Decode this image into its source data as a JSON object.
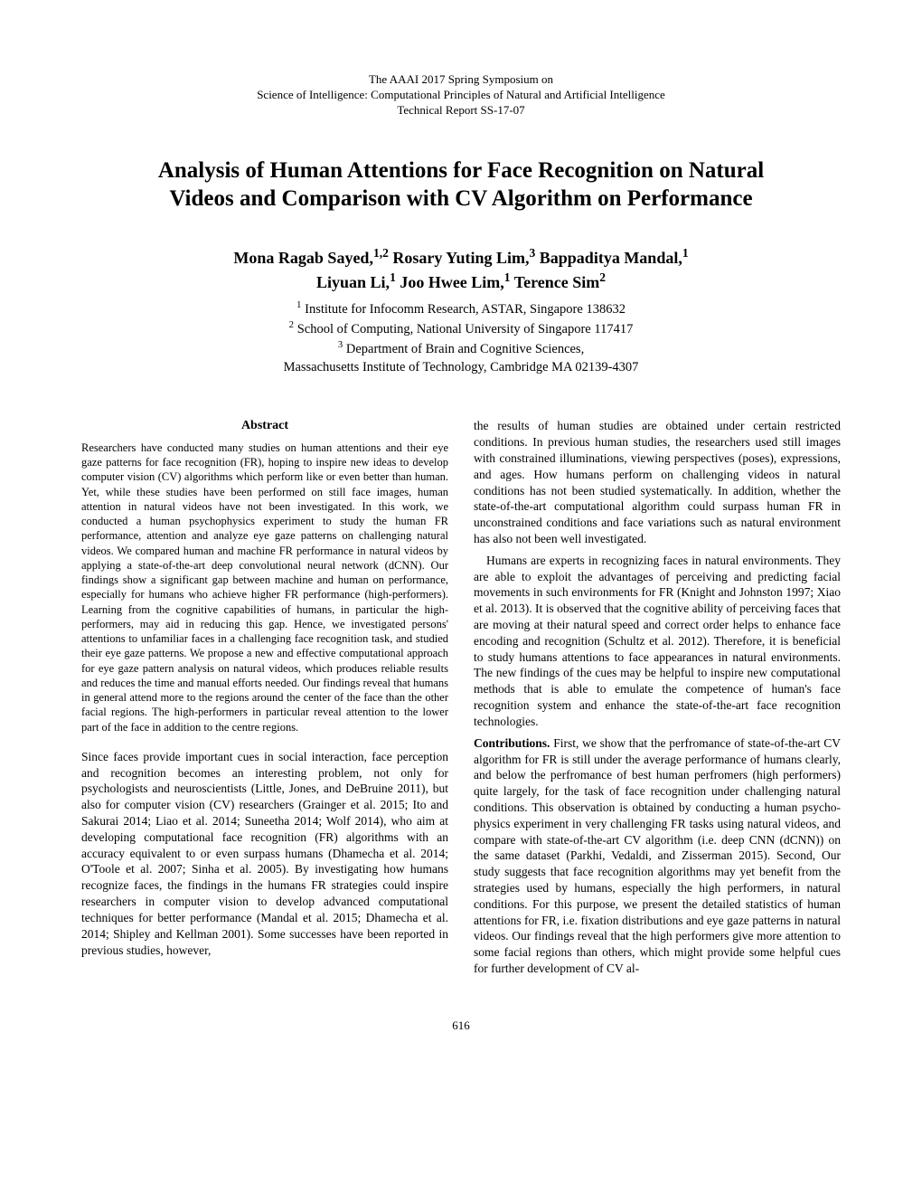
{
  "header": {
    "line1": "The AAAI 2017 Spring Symposium on",
    "line2": "Science of Intelligence: Computational Principles of Natural and Artificial Intelligence",
    "line3": "Technical Report SS-17-07"
  },
  "title": {
    "line1": "Analysis of Human Attentions for Face Recognition on Natural",
    "line2": "Videos and Comparison with CV Algorithm on Performance"
  },
  "authors": {
    "line1_html": "Mona Ragab Sayed,<sup>1,2</sup> Rosary Yuting Lim,<sup>3</sup> Bappaditya Mandal,<sup>1</sup>",
    "line2_html": "Liyuan Li,<sup>1</sup> Joo Hwee Lim,<sup>1</sup> Terence Sim<sup>2</sup>"
  },
  "affiliations": {
    "a1_html": "<sup>1</sup> Institute for Infocomm Research, ASTAR, Singapore 138632",
    "a2_html": "<sup>2</sup> School of Computing, National University of Singapore 117417",
    "a3_html": "<sup>3</sup> Department of Brain and Cognitive Sciences,",
    "a4": "Massachusetts Institute of Technology, Cambridge MA 02139-4307"
  },
  "abstract": {
    "heading": "Abstract",
    "body": "Researchers have conducted many studies on human attentions and their eye gaze patterns for face recognition (FR), hoping to inspire new ideas to develop computer vision (CV) algorithms which perform like or even better than human. Yet, while these studies have been performed on still face images, human attention in natural videos have not been investigated. In this work, we conducted a human psychophysics experiment to study the human FR performance, attention and analyze eye gaze patterns on challenging natural videos. We compared human and machine FR performance in natural videos by applying a state-of-the-art deep convolutional neural network (dCNN). Our findings show a significant gap between machine and human on performance, especially for humans who achieve higher FR performance (high-performers). Learning from the cognitive capabilities of humans, in particular the high-performers, may aid in reducing this gap. Hence, we investigated persons' attentions to unfamiliar faces in a challenging face recognition task, and studied their eye gaze patterns. We propose a new and effective computational approach for eye gaze pattern analysis on natural videos, which produces reliable results and reduces the time and manual efforts needed. Our findings reveal that humans in general attend more to the regions around the center of the face than the other facial regions. The high-performers in particular reveal attention to the lower part of the face in addition to the centre regions."
  },
  "left": {
    "p1": "Since faces provide important cues in social interaction, face perception and recognition becomes an interesting problem, not only for psychologists and neuroscientists (Little, Jones, and DeBruine 2011), but also for computer vision (CV) researchers (Grainger et al. 2015; Ito and Sakurai 2014; Liao et al. 2014; Suneetha 2014; Wolf 2014), who aim at developing computational face recognition (FR) algorithms with an accuracy equivalent to or even surpass humans (Dhamecha et al. 2014; O'Toole et al. 2007; Sinha et al. 2005). By investigating how humans recognize faces, the findings in the humans FR strategies could inspire researchers in computer vision to develop advanced computational techniques for better performance (Mandal et al. 2015; Dhamecha et al. 2014; Shipley and Kellman 2001). Some successes have been reported in previous studies, however,"
  },
  "right": {
    "p1": "the results of human studies are obtained under certain restricted conditions. In previous human studies, the researchers used still images with constrained illuminations, viewing perspectives (poses), expressions, and ages. How humans perform on challenging videos in natural conditions has not been studied systematically. In addition, whether the state-of-the-art computational algorithm could surpass human FR in unconstrained conditions and face variations such as natural environment has also not been well investigated.",
    "p2": "Humans are experts in recognizing faces in natural environments. They are able to exploit the advantages of perceiving and predicting facial movements in such environments for FR (Knight and Johnston 1997; Xiao et al. 2013). It is observed that the cognitive ability of perceiving faces that are moving at their natural speed and correct order helps to enhance face encoding and recognition (Schultz et al. 2012). Therefore, it is beneficial to study humans attentions to face appearances in natural environments. The new findings of the cues may be helpful to inspire new computational methods that is able to emulate the competence of human's face recognition system and enhance the state-of-the-art face recognition technologies.",
    "contrib_label": "Contributions.",
    "p3": " First, we show that the perfromance of state-of-the-art CV algorithm for FR is still under the average performance of humans clearly, and below the perfromance of best human perfromers (high performers) quite largely, for the task of face recognition under challenging natural conditions. This observation is obtained by conducting a human psycho-physics experiment in very challenging FR tasks using natural videos, and compare with state-of-the-art CV algorithm (i.e. deep CNN (dCNN)) on the same dataset (Parkhi, Vedaldi, and Zisserman 2015). Second, Our study suggests that face recognition algorithms may yet benefit from the strategies used by humans, especially the high performers, in natural conditions. For this purpose, we present the detailed statistics of human attentions for FR, i.e. fixation distributions and eye gaze patterns in natural videos. Our findings reveal that the high performers give more attention to some facial regions than others, which might provide some helpful cues for further development of CV al-"
  },
  "page_number": "616"
}
